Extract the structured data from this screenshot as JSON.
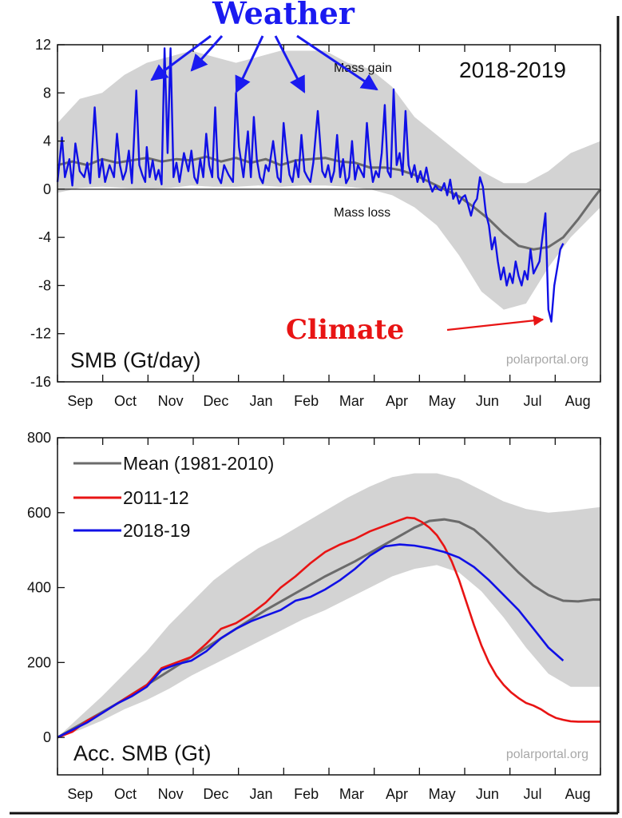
{
  "annotations": {
    "weather": "Weather",
    "climate": "Climate",
    "mass_gain": "Mass gain",
    "mass_loss": "Mass loss",
    "year": "2018-2019",
    "watermark": "polarportal.org"
  },
  "colors": {
    "mean": "#6b6b6b",
    "range_band": "#d3d3d3",
    "series_2011": "#e81414",
    "series_2018": "#1010e6",
    "weather": "#1a1af0",
    "climate": "#e81414"
  },
  "chart_data": [
    {
      "type": "line",
      "title": "SMB (Gt/day)",
      "months": [
        "Sep",
        "Oct",
        "Nov",
        "Dec",
        "Jan",
        "Feb",
        "Mar",
        "Apr",
        "May",
        "Jun",
        "Jul",
        "Aug"
      ],
      "x_unit": "day of season (Sep 1 = 0)",
      "ylim": [
        -16,
        12
      ],
      "yticks": [
        12,
        8,
        4,
        0,
        -4,
        -8,
        -12,
        -16
      ],
      "band": {
        "x": [
          0,
          15,
          30,
          45,
          60,
          75,
          90,
          105,
          120,
          135,
          150,
          165,
          180,
          195,
          210,
          225,
          240,
          255,
          270,
          285,
          300,
          315,
          330,
          345,
          365
        ],
        "lower": [
          -0.3,
          0.1,
          0.2,
          0.1,
          0.0,
          0.1,
          0.3,
          0.2,
          0.2,
          0.3,
          0.2,
          0.3,
          0.3,
          0.2,
          0.0,
          -0.5,
          -1.5,
          -3.0,
          -5.5,
          -8.5,
          -10.0,
          -9.5,
          -6.5,
          -4.0,
          -1.5
        ],
        "upper": [
          5.5,
          7.5,
          8.0,
          9.5,
          10.5,
          11.0,
          11.5,
          11.0,
          10.5,
          11.0,
          11.5,
          11.5,
          11.5,
          10.5,
          10.0,
          8.5,
          6.0,
          4.5,
          3.0,
          1.5,
          0.5,
          0.5,
          1.5,
          3.0,
          4.0
        ]
      },
      "series": [
        {
          "name": "",
          "role": "mean",
          "x": [
            0,
            10,
            20,
            30,
            40,
            50,
            60,
            70,
            80,
            90,
            100,
            110,
            120,
            130,
            140,
            150,
            160,
            170,
            180,
            190,
            200,
            210,
            220,
            230,
            240,
            250,
            260,
            270,
            280,
            290,
            300,
            310,
            320,
            330,
            340,
            350,
            360,
            365
          ],
          "y": [
            2.0,
            2.3,
            2.0,
            2.5,
            2.2,
            2.4,
            2.6,
            2.3,
            2.5,
            2.4,
            2.7,
            2.3,
            2.6,
            2.2,
            2.5,
            2.0,
            2.4,
            2.5,
            2.6,
            2.3,
            2.2,
            1.8,
            1.8,
            1.6,
            1.2,
            0.6,
            0.0,
            -0.6,
            -1.5,
            -2.5,
            -3.7,
            -4.7,
            -5.0,
            -4.8,
            -4.0,
            -2.5,
            -0.8,
            0.0
          ]
        },
        {
          "name": "",
          "role": "2018-2019",
          "x": [
            0,
            3,
            5,
            8,
            10,
            12,
            15,
            18,
            20,
            22,
            25,
            28,
            30,
            32,
            35,
            38,
            40,
            42,
            44,
            46,
            48,
            50,
            53,
            55,
            57,
            59,
            60,
            62,
            64,
            66,
            68,
            70,
            72,
            74,
            76,
            78,
            80,
            82,
            85,
            88,
            90,
            92,
            94,
            96,
            98,
            100,
            102,
            104,
            106,
            108,
            110,
            112,
            115,
            118,
            120,
            122,
            125,
            128,
            130,
            132,
            134,
            136,
            138,
            140,
            142,
            145,
            148,
            150,
            152,
            154,
            156,
            158,
            160,
            162,
            164,
            166,
            168,
            170,
            172,
            175,
            178,
            180,
            182,
            184,
            186,
            188,
            190,
            192,
            194,
            196,
            198,
            200,
            202,
            204,
            206,
            208,
            210,
            212,
            214,
            216,
            218,
            220,
            222,
            224,
            226,
            228,
            230,
            232,
            234,
            236,
            238,
            240,
            242,
            244,
            246,
            248,
            250,
            252,
            254,
            256,
            258,
            260,
            262,
            264,
            266,
            268,
            270,
            272,
            274,
            276,
            278,
            280,
            282,
            284,
            286,
            288,
            290,
            292,
            294,
            296,
            298,
            300,
            302,
            304,
            306,
            308,
            310,
            312,
            314,
            316,
            318,
            320,
            322,
            324,
            326,
            328,
            330,
            332,
            334,
            336,
            338,
            340
          ],
          "y": [
            0.6,
            4.3,
            1.0,
            2.5,
            0.3,
            3.8,
            1.5,
            1.0,
            2.2,
            0.5,
            6.8,
            1.0,
            2.5,
            0.6,
            2.0,
            1.0,
            4.6,
            2.0,
            0.8,
            1.5,
            3.2,
            0.5,
            8.2,
            2.0,
            1.2,
            0.6,
            3.5,
            1.0,
            2.4,
            0.8,
            1.6,
            0.4,
            11.7,
            3.0,
            11.7,
            1.0,
            2.2,
            0.6,
            3.0,
            1.5,
            3.2,
            1.0,
            0.5,
            2.5,
            1.0,
            4.6,
            2.0,
            1.0,
            6.8,
            1.0,
            0.5,
            2.0,
            1.2,
            0.6,
            8.0,
            3.5,
            1.0,
            4.8,
            1.0,
            6.0,
            2.5,
            1.0,
            0.5,
            2.0,
            1.5,
            4.0,
            1.0,
            0.6,
            5.5,
            3.0,
            1.2,
            0.6,
            2.4,
            1.0,
            4.5,
            1.5,
            1.0,
            0.6,
            2.2,
            6.5,
            1.5,
            1.0,
            2.0,
            0.6,
            1.5,
            4.5,
            1.0,
            2.5,
            0.5,
            1.0,
            4.0,
            0.8,
            2.0,
            1.5,
            1.0,
            5.5,
            2.5,
            0.6,
            1.5,
            1.0,
            3.0,
            7.0,
            1.5,
            1.0,
            8.3,
            2.0,
            3.0,
            1.2,
            6.5,
            2.0,
            1.0,
            2.0,
            0.6,
            1.5,
            0.6,
            1.8,
            0.5,
            -0.2,
            0.3,
            0.0,
            -0.1,
            0.5,
            -0.5,
            0.8,
            -0.8,
            -0.3,
            -1.2,
            -0.7,
            -0.5,
            -1.3,
            -2.2,
            -1.2,
            -0.8,
            1.0,
            0.2,
            -2.0,
            -3.0,
            -5.0,
            -4.0,
            -6.0,
            -7.5,
            -6.5,
            -8.0,
            -7.0,
            -7.8,
            -6.0,
            -7.2,
            -8.0,
            -6.8,
            -7.5,
            -5.0,
            -7.0,
            -6.5,
            -6.0,
            -4.0,
            -2.0,
            -10.0,
            -11.0,
            -8.0,
            -6.5,
            -5.0,
            -4.5
          ]
        }
      ],
      "x_extent": [
        0,
        365
      ]
    },
    {
      "type": "line",
      "title": "Acc. SMB (Gt)",
      "months": [
        "Sep",
        "Oct",
        "Nov",
        "Dec",
        "Jan",
        "Feb",
        "Mar",
        "Apr",
        "May",
        "Jun",
        "Jul",
        "Aug"
      ],
      "x_unit": "day of season (Sep 1 = 0)",
      "ylim": [
        -100,
        800
      ],
      "yticks": [
        800,
        600,
        400,
        200,
        0
      ],
      "legend": [
        "Mean (1981-2010)",
        "2011-12",
        "2018-19"
      ],
      "legend_position": "top-left",
      "band": {
        "x": [
          0,
          15,
          30,
          45,
          60,
          75,
          90,
          105,
          120,
          135,
          150,
          165,
          180,
          195,
          210,
          225,
          240,
          255,
          270,
          285,
          300,
          315,
          330,
          345,
          365
        ],
        "lower": [
          0,
          20,
          45,
          75,
          100,
          130,
          165,
          195,
          225,
          255,
          285,
          315,
          340,
          370,
          400,
          430,
          450,
          460,
          440,
          390,
          320,
          240,
          170,
          135,
          135
        ],
        "upper": [
          0,
          55,
          110,
          170,
          230,
          300,
          360,
          420,
          465,
          505,
          535,
          570,
          605,
          640,
          670,
          695,
          705,
          705,
          690,
          660,
          630,
          610,
          600,
          605,
          615
        ]
      },
      "series": [
        {
          "name": "Mean (1981-2010)",
          "x": [
            0,
            20,
            40,
            60,
            80,
            100,
            120,
            140,
            160,
            180,
            200,
            220,
            240,
            250,
            260,
            270,
            280,
            290,
            300,
            310,
            320,
            330,
            340,
            350,
            360,
            365
          ],
          "y": [
            0,
            45,
            90,
            140,
            190,
            240,
            290,
            340,
            385,
            430,
            470,
            515,
            560,
            578,
            582,
            575,
            555,
            520,
            480,
            440,
            405,
            380,
            365,
            363,
            368,
            368
          ],
          "color": "#6b6b6b"
        },
        {
          "name": "2011-12",
          "x": [
            0,
            10,
            20,
            30,
            40,
            50,
            60,
            70,
            80,
            90,
            100,
            110,
            120,
            130,
            140,
            150,
            160,
            170,
            180,
            190,
            200,
            210,
            220,
            230,
            235,
            240,
            245,
            250,
            255,
            260,
            265,
            270,
            275,
            280,
            285,
            290,
            295,
            300,
            305,
            310,
            315,
            320,
            325,
            330,
            335,
            340,
            345,
            350,
            355,
            360,
            365
          ],
          "y": [
            0,
            15,
            45,
            65,
            90,
            115,
            140,
            185,
            200,
            215,
            250,
            290,
            305,
            330,
            360,
            400,
            430,
            465,
            495,
            515,
            530,
            550,
            565,
            580,
            587,
            585,
            575,
            560,
            540,
            510,
            470,
            420,
            360,
            300,
            245,
            200,
            165,
            140,
            120,
            105,
            92,
            85,
            75,
            62,
            52,
            47,
            43,
            42,
            42,
            42,
            42
          ],
          "color": "#e81414"
        },
        {
          "name": "2018-19",
          "x": [
            0,
            10,
            20,
            30,
            40,
            50,
            60,
            70,
            80,
            90,
            100,
            110,
            120,
            130,
            140,
            150,
            160,
            170,
            180,
            190,
            200,
            210,
            220,
            230,
            240,
            250,
            260,
            270,
            280,
            290,
            300,
            310,
            320,
            330,
            340
          ],
          "y": [
            0,
            20,
            40,
            65,
            90,
            110,
            135,
            180,
            195,
            205,
            230,
            265,
            290,
            310,
            325,
            340,
            365,
            375,
            395,
            420,
            450,
            485,
            510,
            515,
            512,
            505,
            495,
            480,
            455,
            420,
            380,
            340,
            290,
            240,
            205
          ],
          "color": "#1010e6"
        }
      ],
      "x_extent": [
        0,
        365
      ]
    }
  ]
}
